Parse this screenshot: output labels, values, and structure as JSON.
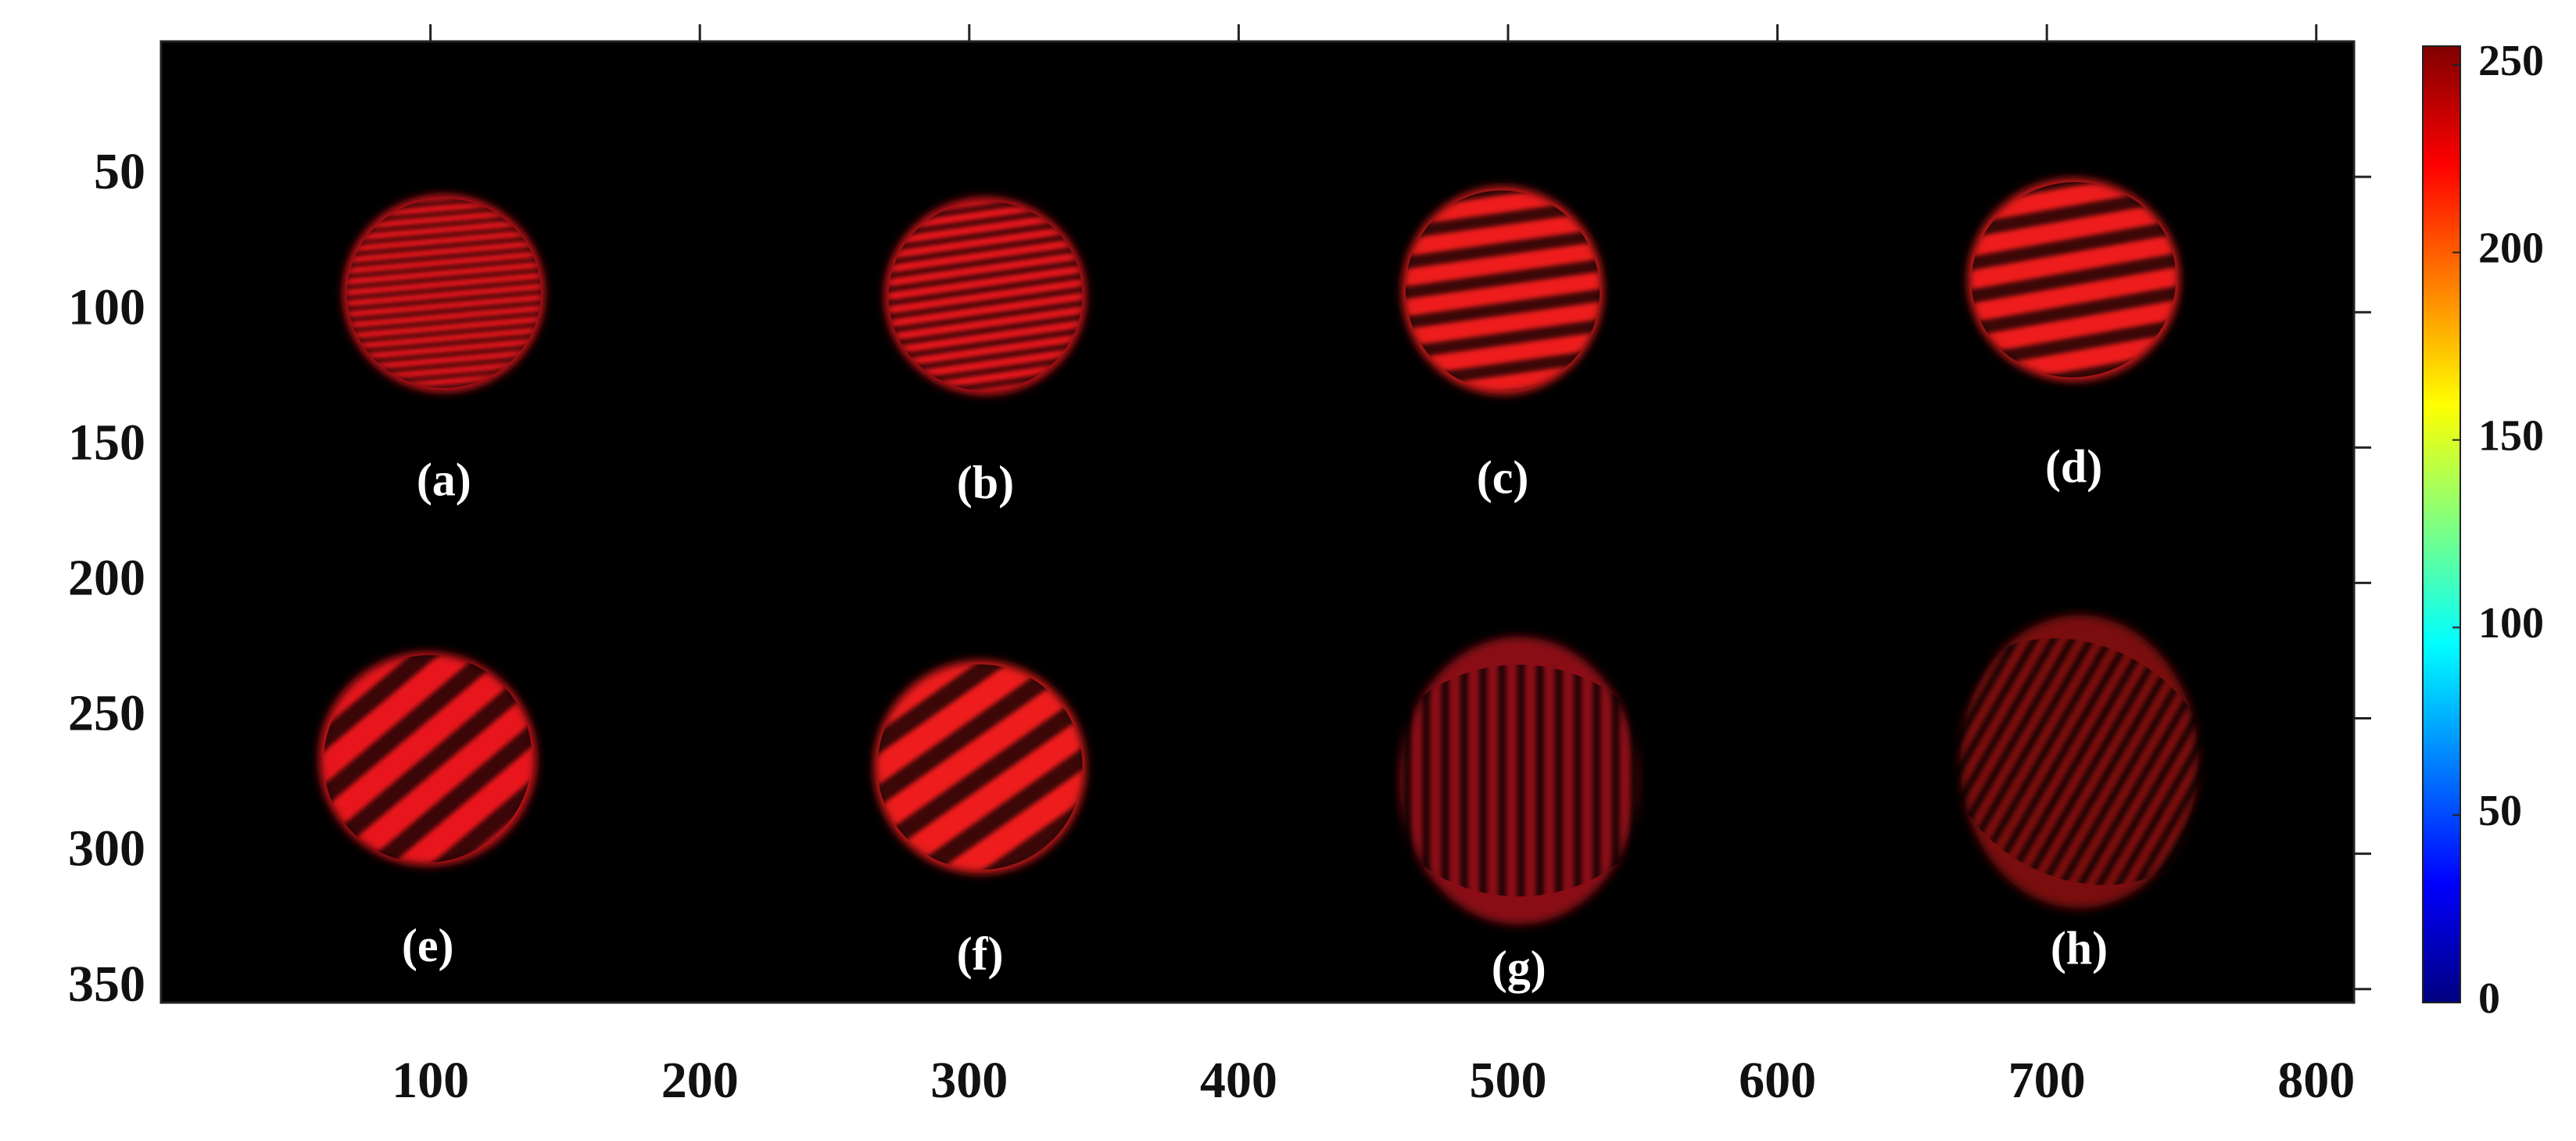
{
  "chart_data": {
    "type": "image",
    "background": "#000000",
    "xlim": [
      0,
      814
    ],
    "ylim": [
      0,
      355
    ],
    "y_reversed": true,
    "xticks": [
      100,
      200,
      300,
      400,
      500,
      600,
      700,
      800
    ],
    "yticks": [
      50,
      100,
      150,
      200,
      250,
      300,
      350
    ],
    "colormap": "jet",
    "clim": [
      0,
      255
    ],
    "cticks": [
      0,
      50,
      100,
      150,
      200,
      250
    ],
    "spots": [
      {
        "label": "(a)",
        "x": 105,
        "y": 93,
        "rx": 36,
        "ry": 35,
        "fringe_period": 4,
        "fringe_angle": 5,
        "color": "#e8141a"
      },
      {
        "label": "(b)",
        "x": 306,
        "y": 94,
        "rx": 36,
        "ry": 35,
        "fringe_period": 5,
        "fringe_angle": 8,
        "color": "#e8141a"
      },
      {
        "label": "(c)",
        "x": 498,
        "y": 92,
        "rx": 36,
        "ry": 37,
        "fringe_period": 11,
        "fringe_angle": 8,
        "color": "#ee1a1e"
      },
      {
        "label": "(d)",
        "x": 710,
        "y": 88,
        "rx": 38,
        "ry": 36,
        "fringe_period": 12,
        "fringe_angle": 10,
        "color": "#ee1a1e"
      },
      {
        "label": "(e)",
        "x": 99,
        "y": 265,
        "rx": 39,
        "ry": 38,
        "fringe_period": 16,
        "fringe_angle": 40,
        "color": "#e8141a"
      },
      {
        "label": "(f)",
        "x": 304,
        "y": 268,
        "rx": 38,
        "ry": 38,
        "fringe_period": 16,
        "fringe_angle": 35,
        "color": "#ee1a1e"
      },
      {
        "label": "(g)",
        "x": 504,
        "y": 273,
        "rx": 43,
        "ry": 52,
        "fringe_period": 7,
        "fringe_angle": 90,
        "color": "#8a1012"
      },
      {
        "label": "(h)",
        "x": 712,
        "y": 266,
        "rx": 43,
        "ry": 53,
        "fringe_period": 6,
        "fringe_angle": 60,
        "color": "#7a0e10"
      }
    ]
  }
}
